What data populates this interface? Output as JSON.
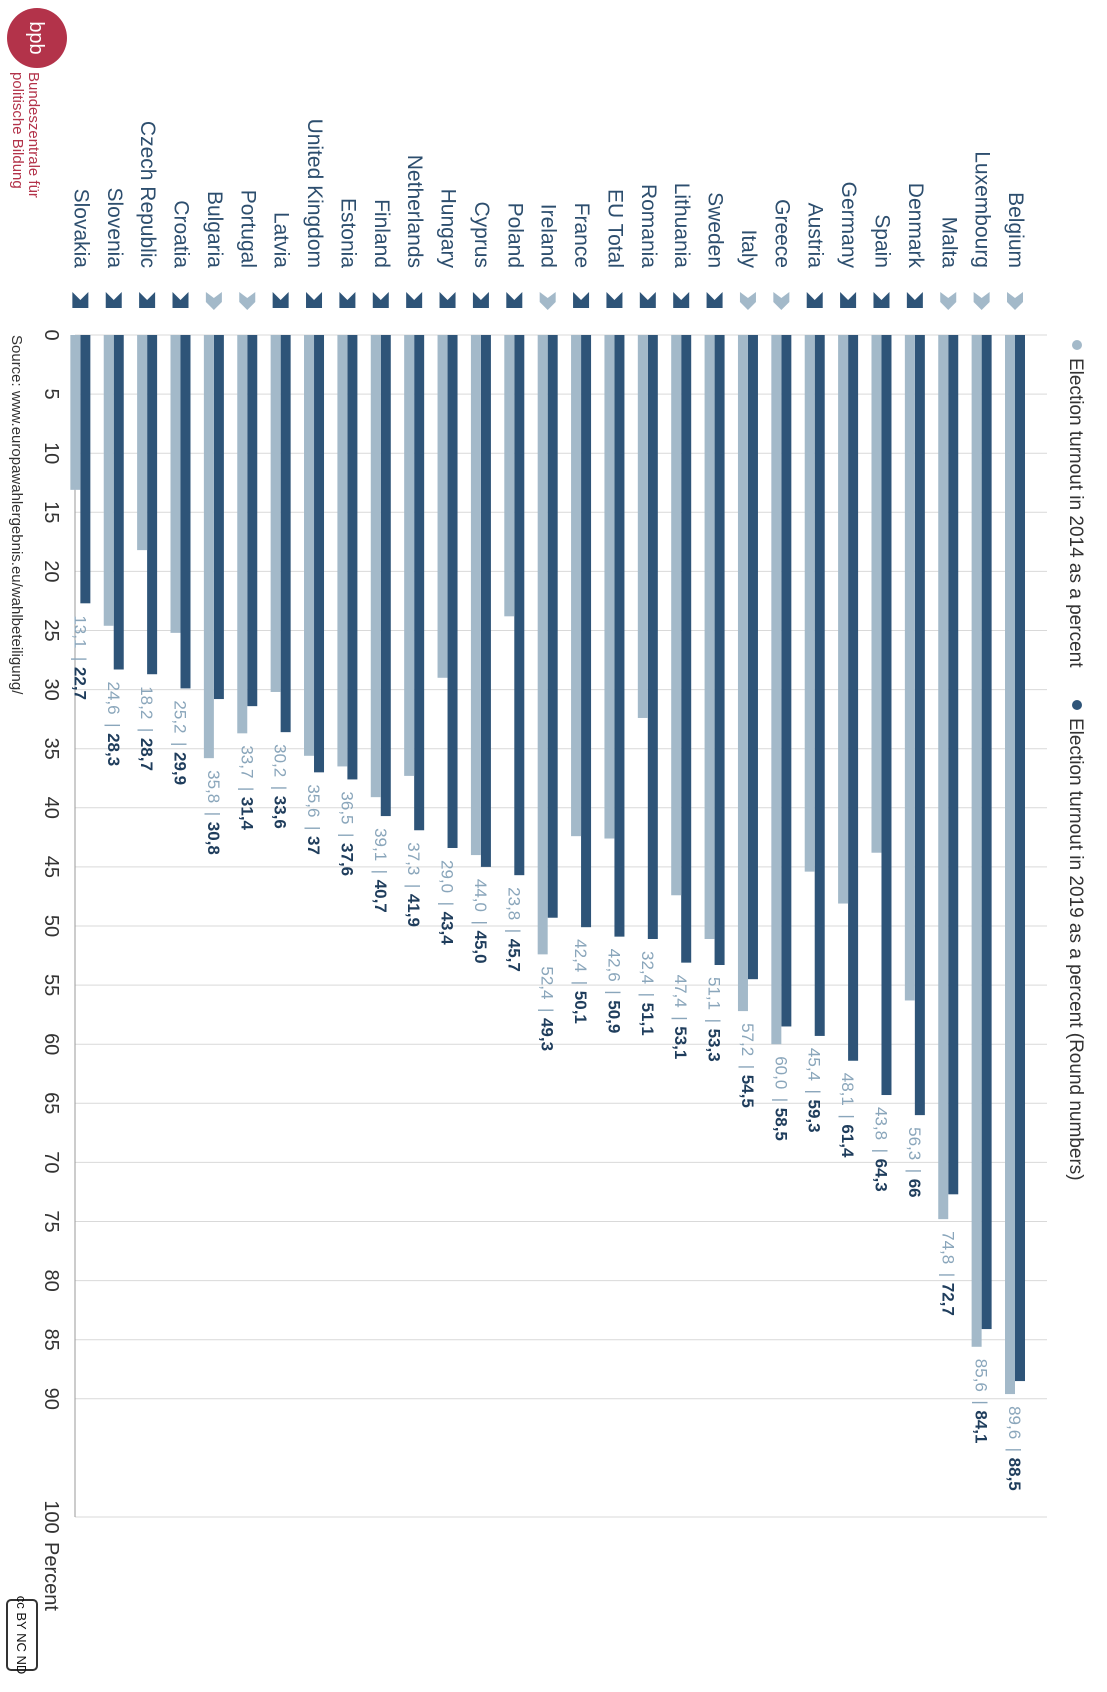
{
  "legend": {
    "item_2014": "Election turnout in 2014 as a percent",
    "item_2019": "Election turnout in 2019 as a percent (Round numbers)"
  },
  "source": "Source: www.europawahlergebnis.eu/wahlbeteiligung/",
  "logo": {
    "mark": "bpb",
    "line1": "Bundeszentrale für",
    "line2": "politische Bildung"
  },
  "license_badge": "cc BY NC ND",
  "colors": {
    "bar_2014": "#a3b9c9",
    "bar_2019": "#2e5478",
    "grid": "#d9d9d9",
    "accent_logo": "#b3334a"
  },
  "chart_data": {
    "type": "bar",
    "orientation": "horizontal",
    "xlabel": "Percent",
    "xlim": [
      0,
      100
    ],
    "xticks": [
      0,
      5,
      10,
      15,
      20,
      25,
      30,
      35,
      40,
      45,
      50,
      55,
      60,
      65,
      70,
      75,
      80,
      85,
      90,
      100
    ],
    "grid": true,
    "legend_position": "top",
    "categories": [
      "Belgium",
      "Luxembourg",
      "Malta",
      "Denmark",
      "Spain",
      "Germany",
      "Austria",
      "Greece",
      "Italy",
      "Sweden",
      "Lithuania",
      "Romania",
      "EU Total",
      "France",
      "Ireland",
      "Poland",
      "Cyprus",
      "Hungary",
      "Netherlands",
      "Finland",
      "Estonia",
      "United Kingdom",
      "Latvia",
      "Portugal",
      "Bulgaria",
      "Croatia",
      "Czech Republic",
      "Slovenia",
      "Slovakia"
    ],
    "series": [
      {
        "name": "Election turnout in 2014 as a percent",
        "values": [
          89.6,
          85.6,
          74.8,
          56.3,
          43.8,
          48.1,
          45.4,
          60.0,
          57.2,
          51.1,
          47.4,
          32.4,
          42.6,
          42.4,
          52.4,
          23.8,
          44.0,
          29.0,
          37.3,
          39.1,
          36.5,
          35.6,
          30.2,
          33.7,
          35.8,
          25.2,
          18.2,
          24.6,
          13.1
        ],
        "labels": [
          "89,6",
          "85,6",
          "74,8",
          "56,3",
          "43,8",
          "48,1",
          "45,4",
          "60,0",
          "57,2",
          "51,1",
          "47,4",
          "32,4",
          "42,6",
          "42,4",
          "52,4",
          "23,8",
          "44,0",
          "29,0",
          "37,3",
          "39,1",
          "36,5",
          "35,6",
          "30,2",
          "33,7",
          "35,8",
          "25,2",
          "18,2",
          "24,6",
          "13,1"
        ]
      },
      {
        "name": "Election turnout in 2019 as a percent (Round numbers)",
        "values": [
          88.5,
          84.1,
          72.7,
          66,
          64.3,
          61.4,
          59.3,
          58.5,
          54.5,
          53.3,
          53.1,
          51.1,
          50.9,
          50.1,
          49.3,
          45.7,
          45.0,
          43.4,
          41.9,
          40.7,
          37.6,
          37,
          33.6,
          31.4,
          30.8,
          29.9,
          28.7,
          28.3,
          22.7
        ],
        "labels": [
          "88,5",
          "84,1",
          "72,7",
          "66",
          "64,3",
          "61,4",
          "59,3",
          "58,5",
          "54,5",
          "53,3",
          "53,1",
          "51,1",
          "50,9",
          "50,1",
          "49,3",
          "45,7",
          "45,0",
          "43,4",
          "41,9",
          "40,7",
          "37,6",
          "37",
          "33,6",
          "31,4",
          "30,8",
          "29,9",
          "28,7",
          "28,3",
          "22,7"
        ]
      }
    ],
    "trend": [
      "up",
      "up",
      "up",
      "down",
      "down",
      "down",
      "down",
      "up",
      "up",
      "down",
      "down",
      "down",
      "down",
      "down",
      "up",
      "down",
      "down",
      "down",
      "down",
      "down",
      "down",
      "down",
      "down",
      "up",
      "up",
      "down",
      "down",
      "down",
      "down"
    ]
  }
}
